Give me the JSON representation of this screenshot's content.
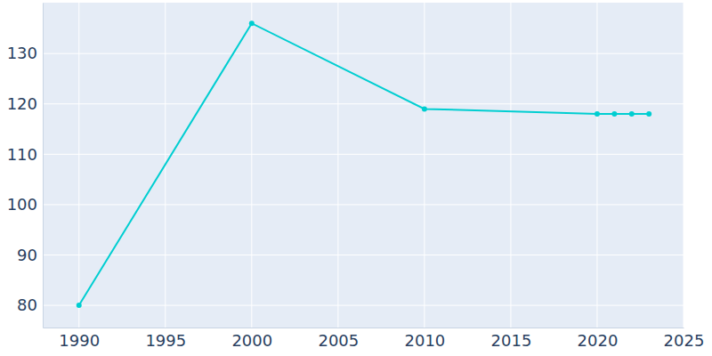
{
  "chart_data": {
    "type": "line",
    "x": [
      1990,
      2000,
      2010,
      2020,
      2021,
      2022,
      2023
    ],
    "values": [
      80,
      136,
      119,
      118,
      118,
      118,
      118
    ],
    "color": "#00ced1",
    "marker": "circle",
    "xlim": [
      1987.9,
      2025
    ],
    "xticks": [
      1990,
      1995,
      2000,
      2005,
      2010,
      2015,
      2020,
      2025
    ],
    "ylim": [
      75.6,
      140.1
    ],
    "yticks": [
      80,
      90,
      100,
      110,
      120,
      130
    ],
    "grid": true
  }
}
